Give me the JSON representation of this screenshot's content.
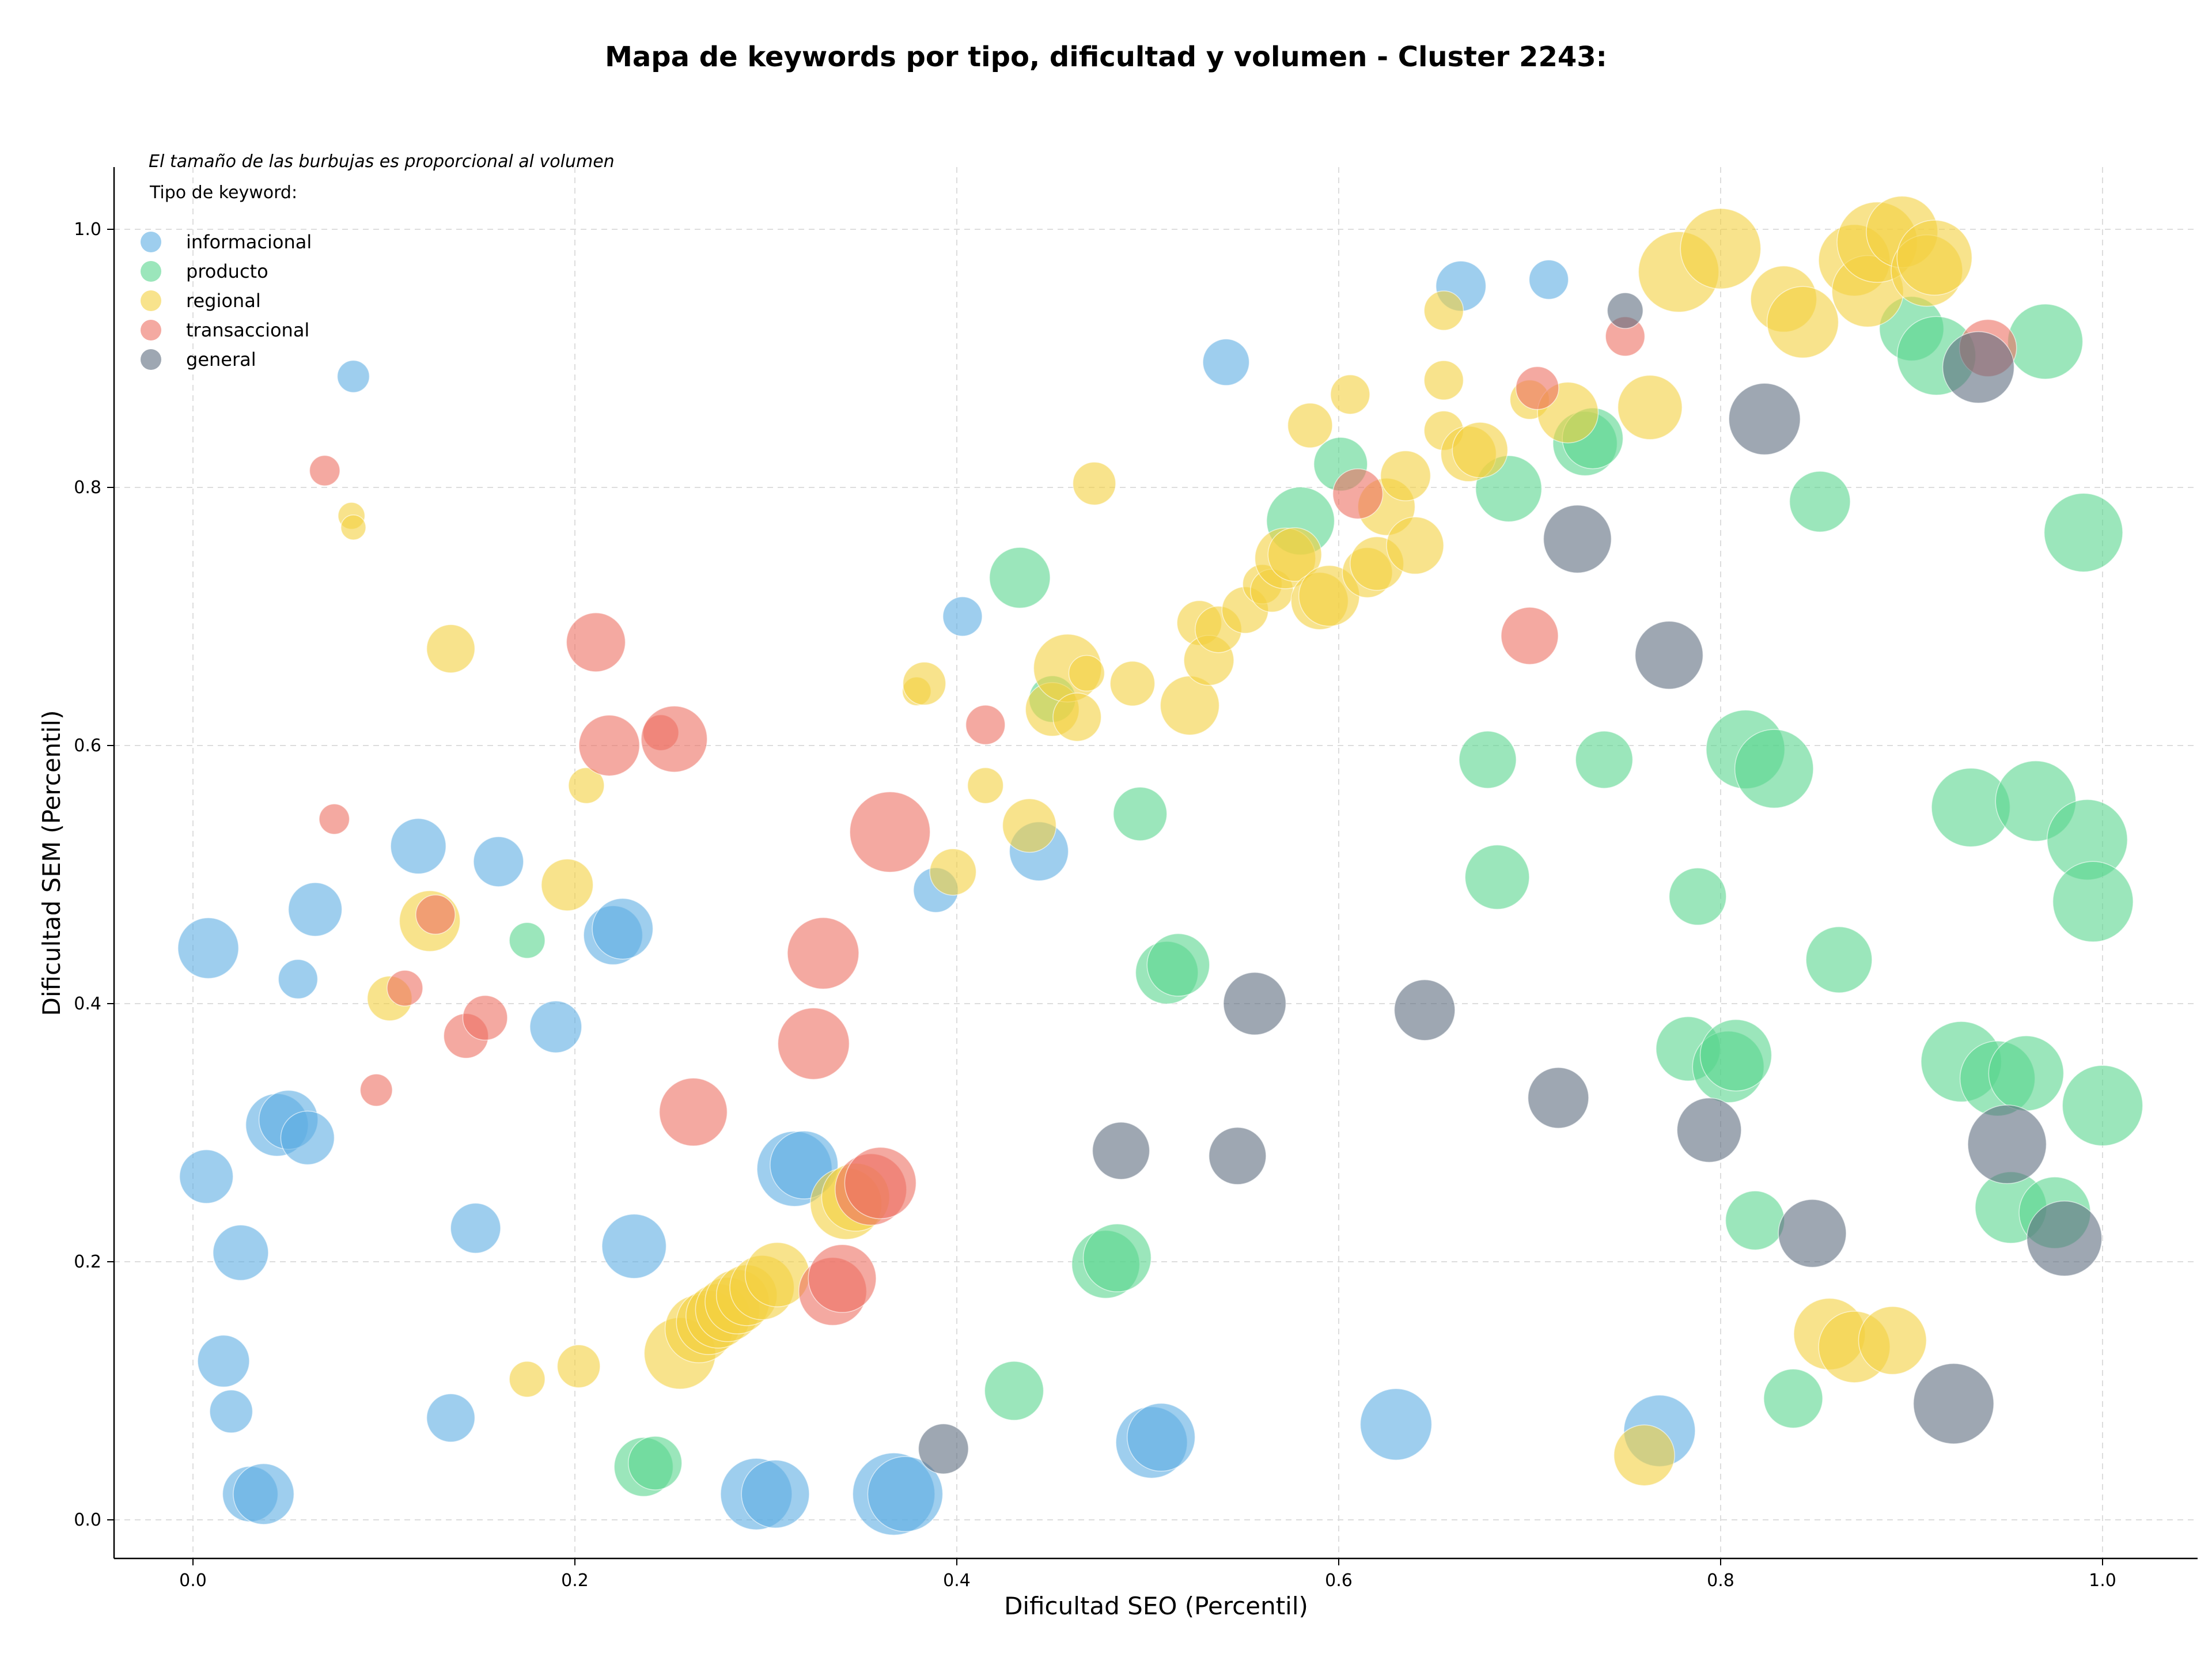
{
  "chart_data": {
    "type": "scatter",
    "title": "Mapa de keywords por tipo, dificultad y volumen - Cluster 2243:",
    "xlabel": "Dificultad SEO (Percentil)",
    "ylabel": "Dificultad SEM (Percentil)",
    "xlim": [
      -0.04,
      1.05
    ],
    "ylim": [
      -0.03,
      1.05
    ],
    "xticks": [
      "0.0",
      "0.2",
      "0.4",
      "0.6",
      "0.8",
      "1.0"
    ],
    "yticks": [
      "0.0",
      "0.2",
      "0.4",
      "0.6",
      "0.8",
      "1.0"
    ],
    "grid": true,
    "legend_placement": "top-left",
    "annotation": "El tamaño de las burbujas es proporcional al volumen",
    "legend_title": "Tipo de keyword:",
    "series": [
      {
        "name": "informacional",
        "color": "#5dade2",
        "points": [
          [
            0.008,
            0.443,
            34
          ],
          [
            0.007,
            0.266,
            30
          ],
          [
            0.025,
            0.207,
            31
          ],
          [
            0.016,
            0.123,
            29
          ],
          [
            0.02,
            0.084,
            24
          ],
          [
            0.03,
            0.02,
            31
          ],
          [
            0.037,
            0.02,
            34
          ],
          [
            0.044,
            0.306,
            35
          ],
          [
            0.05,
            0.31,
            33
          ],
          [
            0.06,
            0.296,
            30
          ],
          [
            0.055,
            0.419,
            22
          ],
          [
            0.064,
            0.473,
            30
          ],
          [
            0.084,
            0.886,
            18
          ],
          [
            0.118,
            0.522,
            31
          ],
          [
            0.135,
            0.079,
            27
          ],
          [
            0.148,
            0.226,
            28
          ],
          [
            0.16,
            0.51,
            28
          ],
          [
            0.19,
            0.382,
            29
          ],
          [
            0.22,
            0.453,
            33
          ],
          [
            0.225,
            0.458,
            34
          ],
          [
            0.231,
            0.212,
            36
          ],
          [
            0.295,
            0.02,
            40
          ],
          [
            0.305,
            0.02,
            38
          ],
          [
            0.315,
            0.272,
            42
          ],
          [
            0.32,
            0.275,
            38
          ],
          [
            0.367,
            0.02,
            46
          ],
          [
            0.373,
            0.02,
            42
          ],
          [
            0.389,
            0.488,
            25
          ],
          [
            0.403,
            0.7,
            22
          ],
          [
            0.443,
            0.518,
            33
          ],
          [
            0.502,
            0.06,
            40
          ],
          [
            0.507,
            0.064,
            38
          ],
          [
            0.541,
            0.897,
            26
          ],
          [
            0.63,
            0.074,
            40
          ],
          [
            0.664,
            0.956,
            28
          ],
          [
            0.71,
            0.961,
            22
          ],
          [
            0.768,
            0.069,
            40
          ]
        ]
      },
      {
        "name": "producto",
        "color": "#58d68d",
        "points": [
          [
            0.175,
            0.449,
            20
          ],
          [
            0.236,
            0.041,
            33
          ],
          [
            0.242,
            0.044,
            30
          ],
          [
            0.43,
            0.1,
            33
          ],
          [
            0.433,
            0.73,
            34
          ],
          [
            0.45,
            0.636,
            26
          ],
          [
            0.478,
            0.198,
            38
          ],
          [
            0.484,
            0.203,
            38
          ],
          [
            0.496,
            0.547,
            30
          ],
          [
            0.51,
            0.424,
            35
          ],
          [
            0.516,
            0.43,
            35
          ],
          [
            0.58,
            0.774,
            38
          ],
          [
            0.601,
            0.818,
            30
          ],
          [
            0.678,
            0.589,
            32
          ],
          [
            0.683,
            0.498,
            36
          ],
          [
            0.689,
            0.799,
            37
          ],
          [
            0.729,
            0.834,
            36
          ],
          [
            0.733,
            0.838,
            34
          ],
          [
            0.739,
            0.589,
            32
          ],
          [
            0.783,
            0.365,
            36
          ],
          [
            0.788,
            0.483,
            32
          ],
          [
            0.804,
            0.351,
            40
          ],
          [
            0.808,
            0.36,
            40
          ],
          [
            0.813,
            0.597,
            44
          ],
          [
            0.818,
            0.232,
            33
          ],
          [
            0.828,
            0.582,
            44
          ],
          [
            0.838,
            0.094,
            33
          ],
          [
            0.852,
            0.789,
            34
          ],
          [
            0.862,
            0.434,
            37
          ],
          [
            0.9,
            0.923,
            36
          ],
          [
            0.913,
            0.902,
            44
          ],
          [
            0.926,
            0.355,
            45
          ],
          [
            0.931,
            0.552,
            44
          ],
          [
            0.945,
            0.342,
            42
          ],
          [
            0.952,
            0.242,
            40
          ],
          [
            0.96,
            0.346,
            42
          ],
          [
            0.965,
            0.557,
            45
          ],
          [
            0.97,
            0.913,
            42
          ],
          [
            0.975,
            0.238,
            40
          ],
          [
            0.99,
            0.765,
            44
          ],
          [
            0.992,
            0.527,
            45
          ],
          [
            0.995,
            0.479,
            45
          ],
          [
            1.0,
            0.321,
            45
          ]
        ]
      },
      {
        "name": "regional",
        "color": "#f4d03f",
        "points": [
          [
            0.083,
            0.778,
            15
          ],
          [
            0.084,
            0.769,
            14
          ],
          [
            0.103,
            0.404,
            25
          ],
          [
            0.124,
            0.464,
            34
          ],
          [
            0.135,
            0.675,
            27
          ],
          [
            0.175,
            0.109,
            20
          ],
          [
            0.196,
            0.492,
            29
          ],
          [
            0.202,
            0.119,
            24
          ],
          [
            0.206,
            0.569,
            20
          ],
          [
            0.255,
            0.129,
            40
          ],
          [
            0.265,
            0.148,
            38
          ],
          [
            0.27,
            0.153,
            36
          ],
          [
            0.275,
            0.158,
            36
          ],
          [
            0.28,
            0.163,
            36
          ],
          [
            0.285,
            0.169,
            36
          ],
          [
            0.29,
            0.174,
            34
          ],
          [
            0.298,
            0.18,
            36
          ],
          [
            0.306,
            0.19,
            36
          ],
          [
            0.342,
            0.245,
            40
          ],
          [
            0.347,
            0.25,
            38
          ],
          [
            0.379,
            0.642,
            16
          ],
          [
            0.383,
            0.648,
            24
          ],
          [
            0.398,
            0.502,
            26
          ],
          [
            0.415,
            0.569,
            20
          ],
          [
            0.438,
            0.538,
            30
          ],
          [
            0.45,
            0.628,
            30
          ],
          [
            0.458,
            0.66,
            38
          ],
          [
            0.463,
            0.622,
            27
          ],
          [
            0.468,
            0.656,
            20
          ],
          [
            0.472,
            0.803,
            24
          ],
          [
            0.492,
            0.648,
            25
          ],
          [
            0.522,
            0.631,
            33
          ],
          [
            0.527,
            0.695,
            25
          ],
          [
            0.532,
            0.666,
            28
          ],
          [
            0.537,
            0.69,
            26
          ],
          [
            0.551,
            0.705,
            26
          ],
          [
            0.56,
            0.725,
            22
          ],
          [
            0.565,
            0.72,
            24
          ],
          [
            0.572,
            0.745,
            34
          ],
          [
            0.577,
            0.748,
            30
          ],
          [
            0.585,
            0.848,
            25
          ],
          [
            0.59,
            0.712,
            32
          ],
          [
            0.595,
            0.716,
            34
          ],
          [
            0.606,
            0.872,
            22
          ],
          [
            0.615,
            0.734,
            28
          ],
          [
            0.62,
            0.741,
            30
          ],
          [
            0.625,
            0.785,
            32
          ],
          [
            0.635,
            0.809,
            28
          ],
          [
            0.64,
            0.755,
            32
          ],
          [
            0.655,
            0.937,
            22
          ],
          [
            0.655,
            0.883,
            22
          ],
          [
            0.655,
            0.844,
            22
          ],
          [
            0.668,
            0.826,
            31
          ],
          [
            0.674,
            0.829,
            31
          ],
          [
            0.7,
            0.868,
            22
          ],
          [
            0.72,
            0.858,
            34
          ],
          [
            0.76,
            0.05,
            34
          ],
          [
            0.763,
            0.862,
            36
          ],
          [
            0.778,
            0.967,
            45
          ],
          [
            0.8,
            0.985,
            45
          ],
          [
            0.833,
            0.946,
            37
          ],
          [
            0.843,
            0.928,
            40
          ],
          [
            0.857,
            0.144,
            40
          ],
          [
            0.87,
            0.134,
            40
          ],
          [
            0.87,
            0.976,
            40
          ],
          [
            0.877,
            0.952,
            40
          ],
          [
            0.882,
            0.99,
            45
          ],
          [
            0.89,
            0.139,
            38
          ],
          [
            0.895,
            0.998,
            40
          ],
          [
            0.908,
            0.968,
            40
          ],
          [
            0.912,
            0.978,
            42
          ]
        ]
      },
      {
        "name": "transaccional",
        "color": "#ec7063",
        "points": [
          [
            0.069,
            0.813,
            17
          ],
          [
            0.074,
            0.543,
            17
          ],
          [
            0.096,
            0.333,
            18
          ],
          [
            0.111,
            0.412,
            20
          ],
          [
            0.127,
            0.469,
            22
          ],
          [
            0.143,
            0.375,
            25
          ],
          [
            0.153,
            0.389,
            25
          ],
          [
            0.211,
            0.68,
            33
          ],
          [
            0.218,
            0.6,
            34
          ],
          [
            0.245,
            0.61,
            20
          ],
          [
            0.252,
            0.605,
            37
          ],
          [
            0.262,
            0.316,
            38
          ],
          [
            0.325,
            0.369,
            40
          ],
          [
            0.33,
            0.439,
            40
          ],
          [
            0.335,
            0.177,
            38
          ],
          [
            0.34,
            0.187,
            38
          ],
          [
            0.355,
            0.256,
            40
          ],
          [
            0.36,
            0.261,
            40
          ],
          [
            0.365,
            0.533,
            45
          ],
          [
            0.415,
            0.616,
            22
          ],
          [
            0.7,
            0.685,
            32
          ],
          [
            0.704,
            0.877,
            24
          ],
          [
            0.75,
            0.917,
            22
          ],
          [
            0.61,
            0.795,
            28
          ],
          [
            0.94,
            0.908,
            32
          ]
        ]
      },
      {
        "name": "general",
        "color": "#5d6d7e",
        "points": [
          [
            0.393,
            0.055,
            28
          ],
          [
            0.486,
            0.286,
            32
          ],
          [
            0.547,
            0.282,
            32
          ],
          [
            0.556,
            0.4,
            35
          ],
          [
            0.645,
            0.395,
            34
          ],
          [
            0.715,
            0.327,
            34
          ],
          [
            0.725,
            0.76,
            38
          ],
          [
            0.75,
            0.937,
            20
          ],
          [
            0.773,
            0.67,
            38
          ],
          [
            0.794,
            0.302,
            36
          ],
          [
            0.823,
            0.853,
            40
          ],
          [
            0.848,
            0.222,
            38
          ],
          [
            0.922,
            0.09,
            45
          ],
          [
            0.935,
            0.893,
            40
          ],
          [
            0.95,
            0.291,
            44
          ],
          [
            0.98,
            0.218,
            42
          ]
        ]
      }
    ]
  }
}
